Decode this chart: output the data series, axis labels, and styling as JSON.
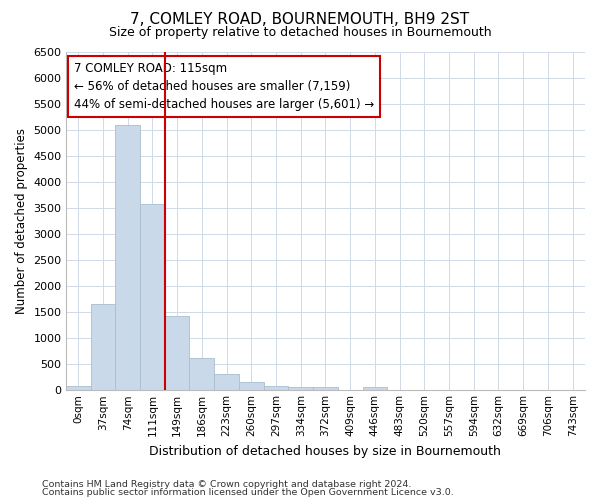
{
  "title": "7, COMLEY ROAD, BOURNEMOUTH, BH9 2ST",
  "subtitle": "Size of property relative to detached houses in Bournemouth",
  "xlabel": "Distribution of detached houses by size in Bournemouth",
  "ylabel": "Number of detached properties",
  "footnote1": "Contains HM Land Registry data © Crown copyright and database right 2024.",
  "footnote2": "Contains public sector information licensed under the Open Government Licence v3.0.",
  "annotation_title": "7 COMLEY ROAD: 115sqm",
  "annotation_line1": "← 56% of detached houses are smaller (7,159)",
  "annotation_line2": "44% of semi-detached houses are larger (5,601) →",
  "bar_color": "#c9d9ea",
  "bar_edge_color": "#a8bece",
  "vline_color": "#cc0000",
  "grid_color": "#d0dae8",
  "categories": [
    "0sqm",
    "37sqm",
    "74sqm",
    "111sqm",
    "149sqm",
    "186sqm",
    "223sqm",
    "260sqm",
    "297sqm",
    "334sqm",
    "372sqm",
    "409sqm",
    "446sqm",
    "483sqm",
    "520sqm",
    "557sqm",
    "594sqm",
    "632sqm",
    "669sqm",
    "706sqm",
    "743sqm"
  ],
  "values": [
    75,
    1650,
    5080,
    3580,
    1420,
    620,
    300,
    160,
    75,
    50,
    50,
    0,
    50,
    0,
    0,
    0,
    0,
    0,
    0,
    0,
    0
  ],
  "ylim": [
    0,
    6500
  ],
  "yticks": [
    0,
    500,
    1000,
    1500,
    2000,
    2500,
    3000,
    3500,
    4000,
    4500,
    5000,
    5500,
    6000,
    6500
  ],
  "vline_x": 3.5
}
